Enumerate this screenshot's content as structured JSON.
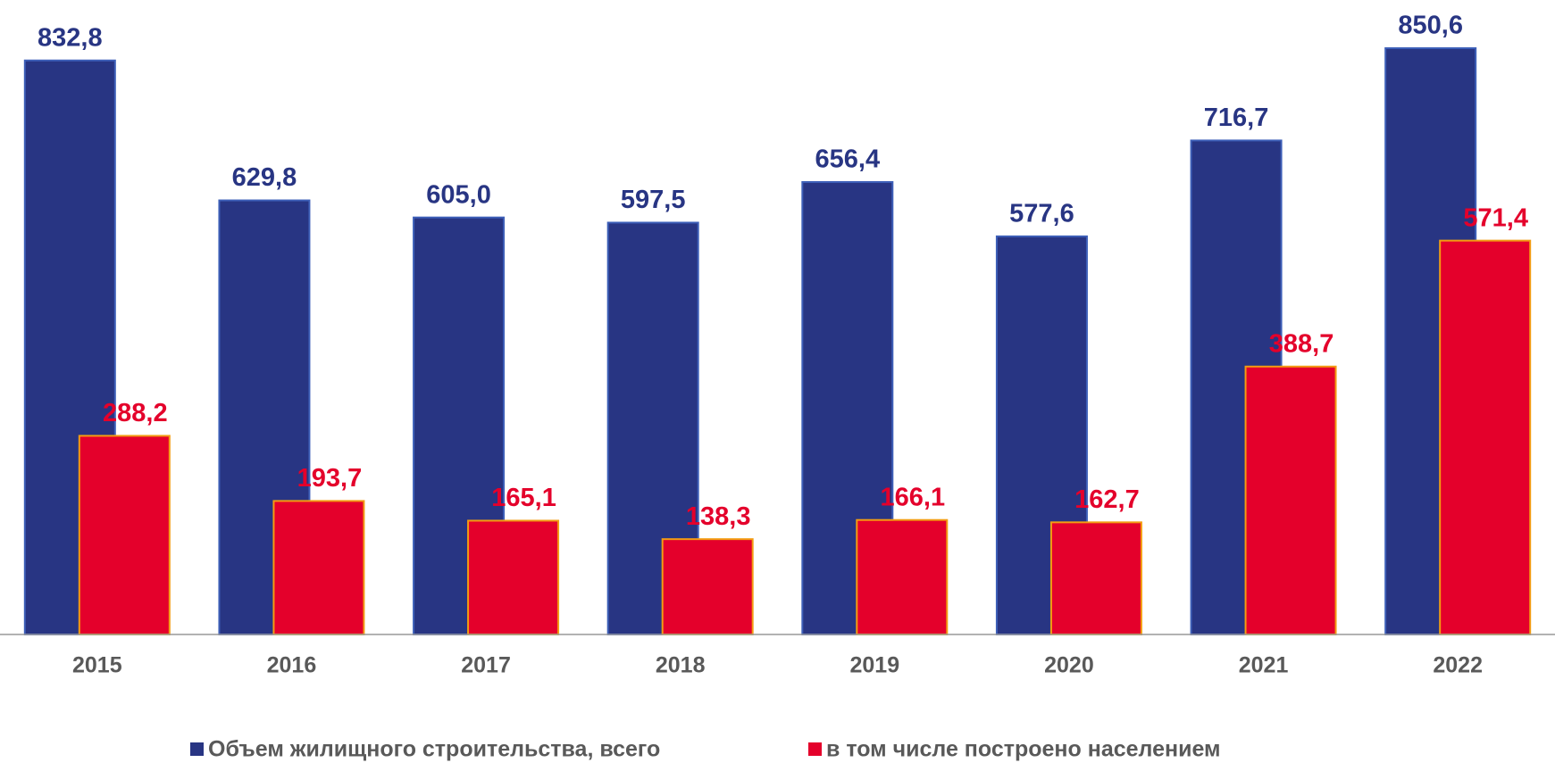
{
  "chart_data": {
    "type": "bar",
    "categories": [
      "2015",
      "2016",
      "2017",
      "2018",
      "2019",
      "2020",
      "2021",
      "2022"
    ],
    "series": [
      {
        "name": "Объем жилищного строительства, всего",
        "color": "#283583",
        "values": [
          832.8,
          629.8,
          605.0,
          597.5,
          656.4,
          577.6,
          716.7,
          850.6
        ],
        "value_labels": [
          "832,8",
          "629,8",
          "605,0",
          "597,5",
          "656,4",
          "577,6",
          "716,7",
          "850,6"
        ]
      },
      {
        "name": "в том числе построено населением",
        "color": "#e4002b",
        "values": [
          288.2,
          193.7,
          165.1,
          138.3,
          166.1,
          162.7,
          388.7,
          571.4
        ],
        "value_labels": [
          "288,2",
          "193,7",
          "165,1",
          "138,3",
          "166,1",
          "162,7",
          "388,7",
          "571,4"
        ]
      }
    ]
  }
}
